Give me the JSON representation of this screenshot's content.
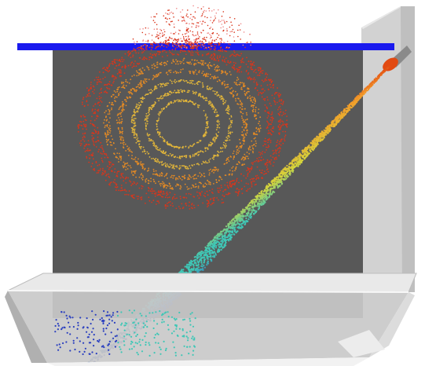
{
  "scene": {
    "kind": "particle-spray-simulation",
    "text": []
  },
  "colors": {
    "background": "#ffffff",
    "wall": "#5a5a5a",
    "side_panel": "#cfcfcf",
    "side_panel_edge": "#e6e6e6",
    "blue_bar": "#1a1aee",
    "tray_rim": "#d9d9d9",
    "tray_body": "#c4c4c4",
    "tray_floor": "#efefef",
    "nozzle_tip": "#e24a12",
    "swirl_outer": "#d9361c",
    "swirl_mid": "#e38a25",
    "swirl_inner": "#e0b43a",
    "spray_start": "#f39b2a",
    "spray_mid": "#d4d53c",
    "spray_low": "#3fc7b6",
    "spray_end": "#2a3fbf"
  }
}
